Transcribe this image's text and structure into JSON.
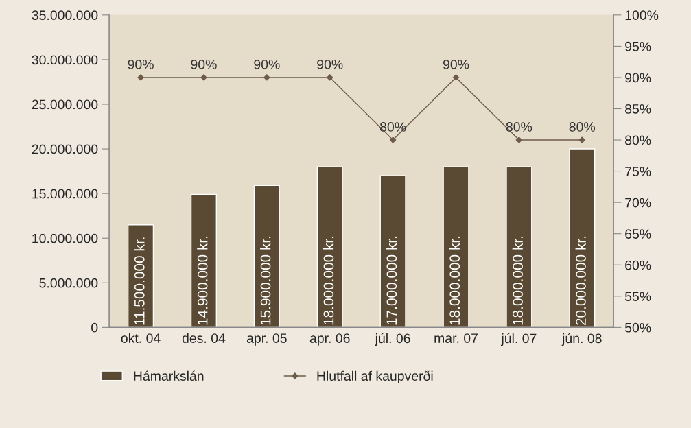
{
  "chart_data": {
    "type": "bar",
    "categories": [
      "okt. 04",
      "des. 04",
      "apr. 05",
      "apr. 06",
      "júl. 06",
      "mar. 07",
      "júl. 07",
      "jún. 08"
    ],
    "ylim": [
      0,
      35000000
    ],
    "yticks": [
      {
        "value": 0,
        "label": "0"
      },
      {
        "value": 5000000,
        "label": "5.000.000"
      },
      {
        "value": 10000000,
        "label": "10.000.000"
      },
      {
        "value": 15000000,
        "label": "15.000.000"
      },
      {
        "value": 20000000,
        "label": "20.000.000"
      },
      {
        "value": 25000000,
        "label": "25.000.000"
      },
      {
        "value": 30000000,
        "label": "30.000.000"
      },
      {
        "value": 35000000,
        "label": "35.000.000"
      }
    ],
    "y2lim": [
      50,
      100
    ],
    "y2ticks": [
      {
        "value": 50,
        "label": "50%"
      },
      {
        "value": 55,
        "label": "55%"
      },
      {
        "value": 60,
        "label": "60%"
      },
      {
        "value": 65,
        "label": "65%"
      },
      {
        "value": 70,
        "label": "70%"
      },
      {
        "value": 75,
        "label": "75%"
      },
      {
        "value": 80,
        "label": "80%"
      },
      {
        "value": 85,
        "label": "85%"
      },
      {
        "value": 90,
        "label": "90%"
      },
      {
        "value": 95,
        "label": "95%"
      },
      {
        "value": 100,
        "label": "100%"
      }
    ],
    "legend": "bottom",
    "grid": false,
    "series": [
      {
        "name": "Hámarkslán",
        "color": "#5b4a33",
        "values": [
          11500000,
          14900000,
          15900000,
          18000000,
          17000000,
          18000000,
          18000000,
          20000000
        ],
        "value_labels": [
          "11.500.000 kr.",
          "14.900.000 kr.",
          "15.900.000 kr.",
          "18.000.000 kr.",
          "17.000.000 kr.",
          "18.000.000 kr.",
          "18.000.000 kr.",
          "20.000.000 kr."
        ]
      },
      {
        "name": "Hlutfall af kaupverði",
        "type": "line",
        "axis": "y2",
        "color": "#6e5c47",
        "marker": "diamond",
        "values": [
          90,
          90,
          90,
          90,
          80,
          90,
          80,
          80
        ],
        "value_labels": [
          "90%",
          "90%",
          "90%",
          "90%",
          "80%",
          "90%",
          "80%",
          "80%"
        ]
      }
    ]
  }
}
